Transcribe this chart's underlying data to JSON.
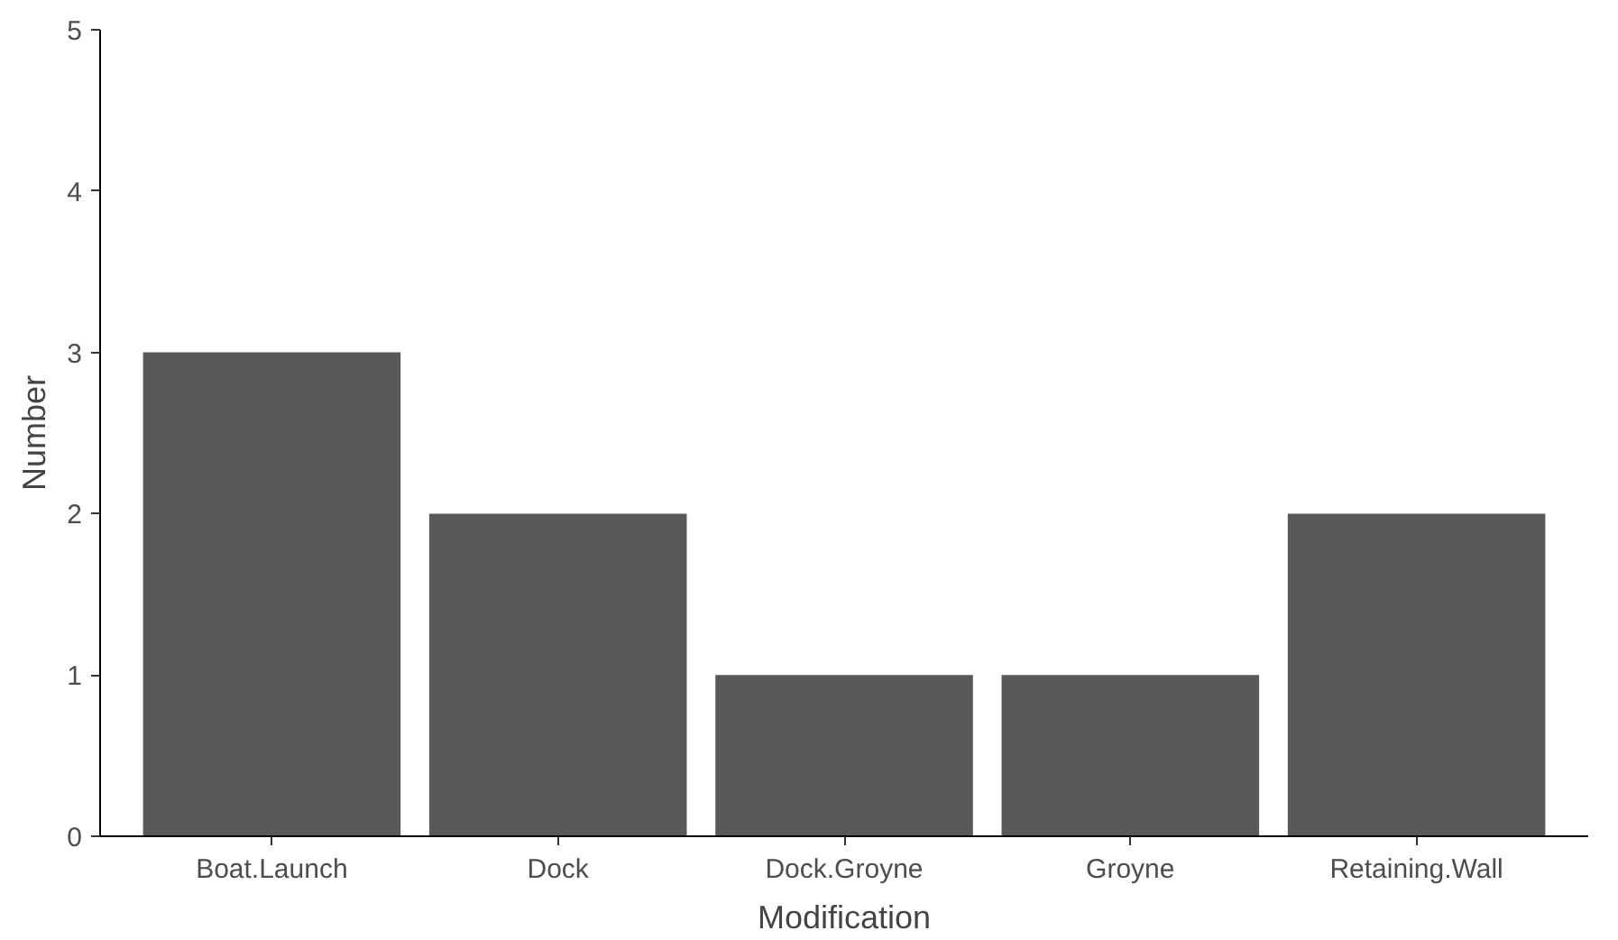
{
  "chart_data": {
    "type": "bar",
    "xlabel": "Modification",
    "ylabel": "Number",
    "categories": [
      "Boat.Launch",
      "Dock",
      "Dock.Groyne",
      "Groyne",
      "Retaining.Wall"
    ],
    "values": [
      3,
      2,
      1,
      1,
      2
    ],
    "color": "#595959",
    "ylim": [
      0,
      5
    ],
    "yticks": [
      0,
      1,
      2,
      3,
      4,
      5
    ],
    "grid": false
  }
}
